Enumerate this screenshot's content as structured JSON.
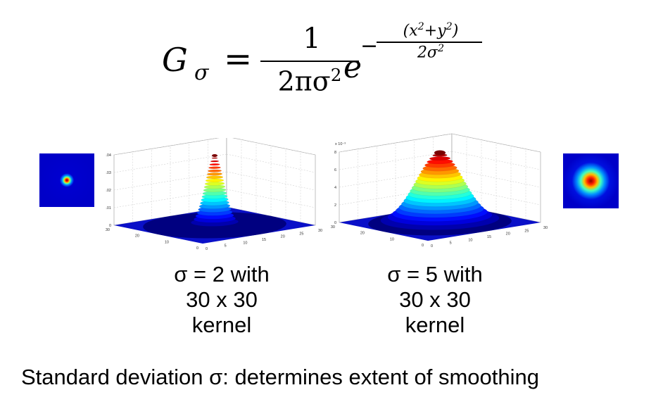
{
  "formula": {
    "lhs": "G",
    "lhs_subscript": "σ",
    "equals": "=",
    "numerator": "1",
    "denominator": "2πσ",
    "denominator_exp": "2",
    "base": "e",
    "exp_sign": "−",
    "exp_numerator": "(x",
    "exp_numerator_sq1": "2",
    "exp_numerator_mid": "+y",
    "exp_numerator_sq2": "2",
    "exp_numerator_end": ")",
    "exp_denominator": "2σ",
    "exp_denominator_sq": "2"
  },
  "plots": [
    {
      "sigma": 2,
      "zticks": [
        "0",
        "0.01",
        "0.02",
        "0.03",
        "0.04"
      ],
      "xticks": [
        "0",
        "5",
        "10",
        "15",
        "20",
        "25",
        "30"
      ],
      "yticks": [
        "0",
        "10",
        "20",
        "30"
      ],
      "exponent": "",
      "caption": [
        "σ = 2 with",
        "30 x 30",
        "kernel"
      ]
    },
    {
      "sigma": 5,
      "zticks": [
        "0",
        "2",
        "4",
        "6",
        "8"
      ],
      "xticks": [
        "0",
        "5",
        "10",
        "15",
        "20",
        "25",
        "30"
      ],
      "yticks": [
        "0",
        "10",
        "20",
        "30"
      ],
      "exponent": "x 10⁻³",
      "caption": [
        "σ = 5 with",
        "30 x 30",
        "kernel"
      ]
    }
  ],
  "colors": {
    "jet_bg": "#0000c8",
    "peak": "#7a0000"
  },
  "footer": "Standard deviation σ: determines extent of smoothing"
}
